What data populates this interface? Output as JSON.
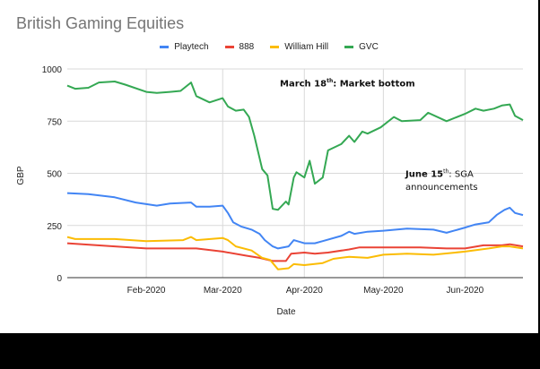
{
  "chart_data": {
    "type": "line",
    "title": "British Gaming Equities",
    "xlabel": "Date",
    "ylabel": "GBP",
    "ylim": [
      0,
      1000
    ],
    "xlim": [
      "2020-01-02",
      "2020-06-23"
    ],
    "yticks": [
      "0",
      "250",
      "500",
      "750",
      "1000"
    ],
    "xticks": [
      {
        "date": "2020-02-01",
        "label": "Feb-2020"
      },
      {
        "date": "2020-03-01",
        "label": "Mar-2020"
      },
      {
        "date": "2020-04-01",
        "label": "Apr-2020"
      },
      {
        "date": "2020-05-01",
        "label": "May-2020"
      },
      {
        "date": "2020-06-01",
        "label": "Jun-2020"
      }
    ],
    "grid": true,
    "legend": "top",
    "annotations": [
      {
        "bold": "March 18",
        "sup": "th",
        "text": ": Market bottom"
      },
      {
        "bold": "June 15",
        "sup": "th",
        "text": ": SGA",
        "text2": "announcements"
      }
    ],
    "series": [
      {
        "name": "Playtech",
        "color": "#4285f4",
        "points": [
          [
            "2020-01-02",
            405
          ],
          [
            "2020-01-10",
            400
          ],
          [
            "2020-01-20",
            385
          ],
          [
            "2020-01-28",
            360
          ],
          [
            "2020-02-05",
            345
          ],
          [
            "2020-02-10",
            355
          ],
          [
            "2020-02-18",
            360
          ],
          [
            "2020-02-20",
            340
          ],
          [
            "2020-02-25",
            340
          ],
          [
            "2020-03-01",
            345
          ],
          [
            "2020-03-03",
            310
          ],
          [
            "2020-03-05",
            265
          ],
          [
            "2020-03-08",
            245
          ],
          [
            "2020-03-12",
            230
          ],
          [
            "2020-03-15",
            210
          ],
          [
            "2020-03-17",
            180
          ],
          [
            "2020-03-20",
            150
          ],
          [
            "2020-03-22",
            140
          ],
          [
            "2020-03-26",
            150
          ],
          [
            "2020-03-28",
            180
          ],
          [
            "2020-04-01",
            165
          ],
          [
            "2020-04-05",
            165
          ],
          [
            "2020-04-08",
            175
          ],
          [
            "2020-04-15",
            200
          ],
          [
            "2020-04-18",
            220
          ],
          [
            "2020-04-20",
            210
          ],
          [
            "2020-04-25",
            220
          ],
          [
            "2020-05-01",
            225
          ],
          [
            "2020-05-10",
            235
          ],
          [
            "2020-05-20",
            230
          ],
          [
            "2020-05-25",
            215
          ],
          [
            "2020-06-01",
            240
          ],
          [
            "2020-06-05",
            255
          ],
          [
            "2020-06-10",
            265
          ],
          [
            "2020-06-13",
            300
          ],
          [
            "2020-06-16",
            325
          ],
          [
            "2020-06-18",
            335
          ],
          [
            "2020-06-20",
            310
          ],
          [
            "2020-06-23",
            300
          ]
        ]
      },
      {
        "name": "888",
        "color": "#ea4335",
        "points": [
          [
            "2020-01-02",
            165
          ],
          [
            "2020-01-20",
            150
          ],
          [
            "2020-02-01",
            140
          ],
          [
            "2020-02-20",
            140
          ],
          [
            "2020-03-01",
            125
          ],
          [
            "2020-03-10",
            105
          ],
          [
            "2020-03-15",
            95
          ],
          [
            "2020-03-20",
            80
          ],
          [
            "2020-03-25",
            80
          ],
          [
            "2020-03-27",
            115
          ],
          [
            "2020-04-01",
            120
          ],
          [
            "2020-04-05",
            115
          ],
          [
            "2020-04-10",
            120
          ],
          [
            "2020-04-18",
            135
          ],
          [
            "2020-04-22",
            145
          ],
          [
            "2020-05-01",
            145
          ],
          [
            "2020-05-15",
            145
          ],
          [
            "2020-05-25",
            140
          ],
          [
            "2020-06-01",
            140
          ],
          [
            "2020-06-08",
            155
          ],
          [
            "2020-06-15",
            155
          ],
          [
            "2020-06-18",
            160
          ],
          [
            "2020-06-23",
            150
          ]
        ]
      },
      {
        "name": "William Hill",
        "color": "#fbbc04",
        "points": [
          [
            "2020-01-02",
            195
          ],
          [
            "2020-01-05",
            185
          ],
          [
            "2020-01-20",
            185
          ],
          [
            "2020-02-01",
            175
          ],
          [
            "2020-02-15",
            180
          ],
          [
            "2020-02-18",
            195
          ],
          [
            "2020-02-20",
            180
          ],
          [
            "2020-03-01",
            190
          ],
          [
            "2020-03-03",
            180
          ],
          [
            "2020-03-06",
            150
          ],
          [
            "2020-03-12",
            130
          ],
          [
            "2020-03-16",
            95
          ],
          [
            "2020-03-19",
            85
          ],
          [
            "2020-03-22",
            40
          ],
          [
            "2020-03-26",
            45
          ],
          [
            "2020-03-28",
            65
          ],
          [
            "2020-04-01",
            60
          ],
          [
            "2020-04-08",
            70
          ],
          [
            "2020-04-12",
            90
          ],
          [
            "2020-04-18",
            100
          ],
          [
            "2020-04-25",
            95
          ],
          [
            "2020-05-01",
            110
          ],
          [
            "2020-05-10",
            115
          ],
          [
            "2020-05-20",
            110
          ],
          [
            "2020-06-01",
            125
          ],
          [
            "2020-06-10",
            140
          ],
          [
            "2020-06-15",
            150
          ],
          [
            "2020-06-18",
            150
          ],
          [
            "2020-06-23",
            140
          ]
        ]
      },
      {
        "name": "GVC",
        "color": "#34a853",
        "points": [
          [
            "2020-01-02",
            920
          ],
          [
            "2020-01-05",
            905
          ],
          [
            "2020-01-10",
            910
          ],
          [
            "2020-01-14",
            935
          ],
          [
            "2020-01-20",
            940
          ],
          [
            "2020-01-24",
            925
          ],
          [
            "2020-02-01",
            890
          ],
          [
            "2020-02-05",
            885
          ],
          [
            "2020-02-10",
            890
          ],
          [
            "2020-02-14",
            895
          ],
          [
            "2020-02-18",
            935
          ],
          [
            "2020-02-20",
            870
          ],
          [
            "2020-02-25",
            840
          ],
          [
            "2020-03-01",
            860
          ],
          [
            "2020-03-03",
            820
          ],
          [
            "2020-03-06",
            800
          ],
          [
            "2020-03-09",
            805
          ],
          [
            "2020-03-11",
            770
          ],
          [
            "2020-03-13",
            680
          ],
          [
            "2020-03-16",
            520
          ],
          [
            "2020-03-18",
            490
          ],
          [
            "2020-03-20",
            330
          ],
          [
            "2020-03-22",
            325
          ],
          [
            "2020-03-25",
            365
          ],
          [
            "2020-03-26",
            350
          ],
          [
            "2020-03-28",
            480
          ],
          [
            "2020-03-29",
            505
          ],
          [
            "2020-04-01",
            480
          ],
          [
            "2020-04-03",
            560
          ],
          [
            "2020-04-05",
            450
          ],
          [
            "2020-04-08",
            480
          ],
          [
            "2020-04-10",
            610
          ],
          [
            "2020-04-15",
            640
          ],
          [
            "2020-04-18",
            680
          ],
          [
            "2020-04-20",
            650
          ],
          [
            "2020-04-23",
            700
          ],
          [
            "2020-04-25",
            690
          ],
          [
            "2020-04-30",
            720
          ],
          [
            "2020-05-05",
            770
          ],
          [
            "2020-05-08",
            750
          ],
          [
            "2020-05-15",
            755
          ],
          [
            "2020-05-18",
            790
          ],
          [
            "2020-05-25",
            750
          ],
          [
            "2020-06-01",
            785
          ],
          [
            "2020-06-05",
            810
          ],
          [
            "2020-06-08",
            800
          ],
          [
            "2020-06-12",
            810
          ],
          [
            "2020-06-15",
            825
          ],
          [
            "2020-06-18",
            830
          ],
          [
            "2020-06-20",
            775
          ],
          [
            "2020-06-23",
            755
          ]
        ]
      }
    ]
  }
}
